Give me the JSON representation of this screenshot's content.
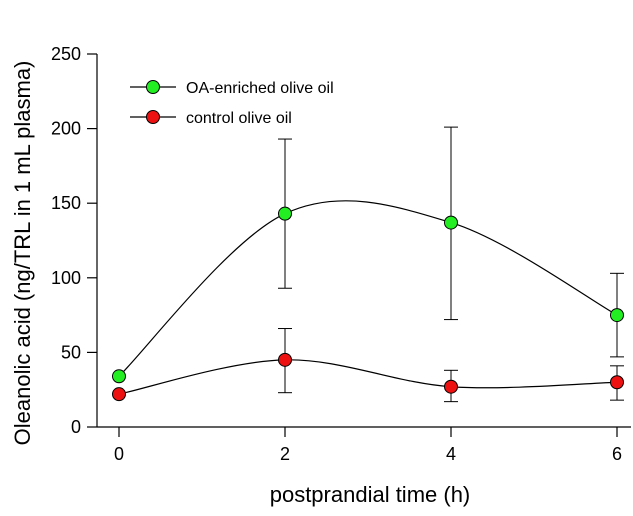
{
  "chart_data": {
    "type": "line",
    "title": "",
    "xlabel": "postprandial time (h)",
    "ylabel": "Oleanolic acid (ng/TRL in 1 mL plasma)",
    "xlim": [
      -0.2,
      6.2
    ],
    "ylim": [
      0,
      250
    ],
    "x": [
      0,
      2,
      4,
      6
    ],
    "xticks": [
      "0",
      "2",
      "4",
      "6"
    ],
    "yticks": [
      "0",
      "50",
      "100",
      "150",
      "200",
      "250"
    ],
    "grid": false,
    "legend_position": "top-left",
    "series": [
      {
        "name": "OA-enriched olive oil",
        "color": "#22ee22",
        "values": [
          34,
          143,
          137,
          75
        ],
        "error_upper": [
          34,
          193,
          201,
          103
        ],
        "error_lower": [
          34,
          93,
          72,
          47
        ]
      },
      {
        "name": "control olive oil",
        "color": "#ee1111",
        "values": [
          22,
          45,
          27,
          30
        ],
        "error_upper": [
          22,
          66,
          38,
          41
        ],
        "error_lower": [
          22,
          23,
          17,
          18
        ]
      }
    ]
  }
}
